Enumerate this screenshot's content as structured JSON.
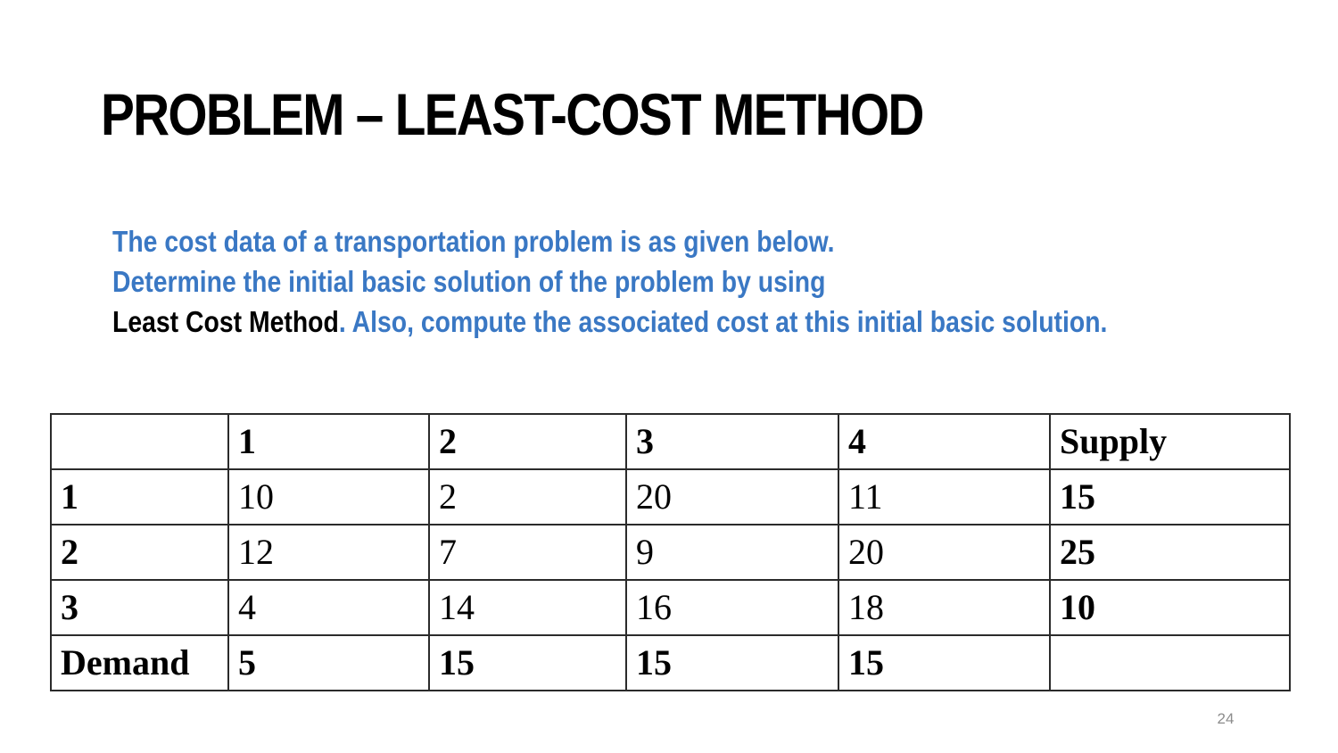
{
  "slide": {
    "title": "PROBLEM – LEAST-COST METHOD",
    "body": {
      "line1": "The cost data of a transportation problem is as given below.",
      "line2": "Determine the initial basic solution of the problem by using",
      "line3_emphasis": "Least Cost Method",
      "line3_rest": ". Also, compute the associated cost at this initial basic solution."
    },
    "table": {
      "header": [
        "",
        "1",
        "2",
        "3",
        "4",
        "Supply"
      ],
      "rows": [
        [
          "1",
          "10",
          "2",
          "20",
          "11",
          "15"
        ],
        [
          "2",
          "12",
          "7",
          "9",
          "20",
          "25"
        ],
        [
          "3",
          "4",
          "14",
          "16",
          "18",
          "10"
        ],
        [
          "Demand",
          "5",
          "15",
          "15",
          "15",
          ""
        ]
      ]
    },
    "slide_number": "24",
    "colors": {
      "title": "#000000",
      "body_text": "#3a78c4",
      "emphasis": "#000000",
      "table_border": "#2b2b2b",
      "slide_number": "#8c8c8c"
    }
  }
}
